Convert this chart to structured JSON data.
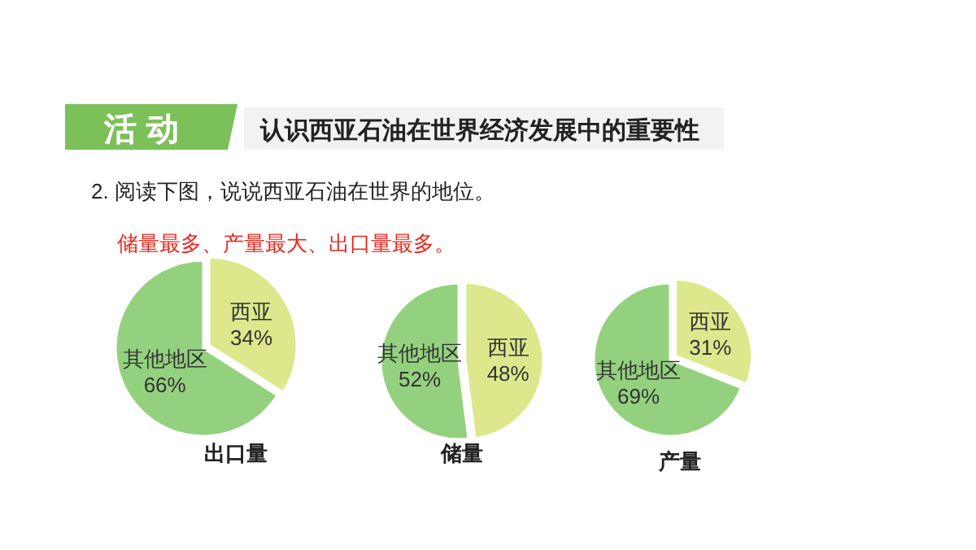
{
  "chart_data": [
    {
      "type": "other",
      "title": "认识西亚石油在世界经济发展中的重要性",
      "subtitle": "2. 阅读下图，说说西亚石油在世界的地位。",
      "annotations": [
        "活动",
        "储量最多、产量最大、出口量最多。"
      ]
    },
    {
      "type": "pie",
      "title": "出口量",
      "categories": [
        "西亚",
        "其他地区"
      ],
      "values": [
        34,
        66
      ],
      "value_labels": [
        "34%",
        "66%"
      ],
      "colors": [
        "#dce88b",
        "#94d17f"
      ]
    },
    {
      "type": "pie",
      "title": "储量",
      "categories": [
        "西亚",
        "其他地区"
      ],
      "values": [
        48,
        52
      ],
      "value_labels": [
        "48%",
        "52%"
      ],
      "colors": [
        "#dce88b",
        "#94d17f"
      ]
    },
    {
      "type": "pie",
      "title": "产量",
      "categories": [
        "西亚",
        "其他地区"
      ],
      "values": [
        31,
        69
      ],
      "value_labels": [
        "31%",
        "69%"
      ],
      "colors": [
        "#dce88b",
        "#94d17f"
      ]
    }
  ]
}
